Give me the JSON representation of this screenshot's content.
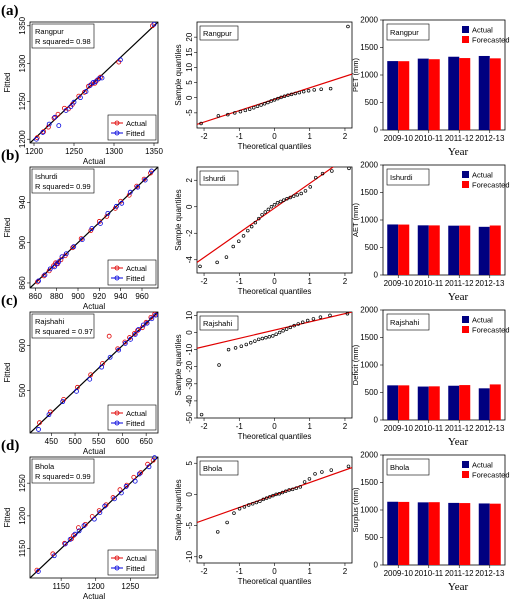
{
  "panels": [
    {
      "letter": "(a)",
      "station": "Rangpur",
      "r2": "R squared= 0.98",
      "fit": {
        "xlim": [
          1195,
          1355
        ],
        "ylim": [
          1195,
          1355
        ],
        "xticks": [
          1200,
          1250,
          1300,
          1350
        ],
        "yticks": [
          1200,
          1250,
          1300,
          1350
        ],
        "actual": [
          [
            1204,
            1202
          ],
          [
            1212,
            1210
          ],
          [
            1218,
            1216
          ],
          [
            1225,
            1228
          ],
          [
            1230,
            1233
          ],
          [
            1238,
            1241
          ],
          [
            1243,
            1240
          ],
          [
            1248,
            1246
          ],
          [
            1256,
            1257
          ],
          [
            1263,
            1262
          ],
          [
            1268,
            1270
          ],
          [
            1272,
            1273
          ],
          [
            1276,
            1274
          ],
          [
            1279,
            1278
          ],
          [
            1283,
            1282
          ],
          [
            1306,
            1302
          ],
          [
            1348,
            1350
          ]
        ],
        "fitted": [
          [
            1203,
            1200
          ],
          [
            1211,
            1209
          ],
          [
            1219,
            1220
          ],
          [
            1226,
            1229
          ],
          [
            1231,
            1218
          ],
          [
            1240,
            1238
          ],
          [
            1246,
            1243
          ],
          [
            1250,
            1249
          ],
          [
            1258,
            1255
          ],
          [
            1265,
            1263
          ],
          [
            1270,
            1271
          ],
          [
            1274,
            1275
          ],
          [
            1277,
            1276
          ],
          [
            1281,
            1280
          ],
          [
            1285,
            1281
          ],
          [
            1308,
            1305
          ],
          [
            1350,
            1352
          ]
        ]
      },
      "qq": {
        "xlim": [
          -2.2,
          2.2
        ],
        "ylim": [
          -10,
          25
        ],
        "yticks": [
          -5,
          0,
          5,
          10,
          15,
          20
        ],
        "line": [
          -2.2,
          -8.8,
          2.2,
          7.8
        ],
        "y": [
          -8.5,
          -6.0,
          -5.6,
          -5.0,
          -4.6,
          -4.2,
          -3.8,
          -3.3,
          -2.8,
          -2.4,
          -2.0,
          -1.6,
          -1.1,
          -0.7,
          -0.3,
          0.1,
          0.5,
          0.8,
          1.1,
          1.4,
          1.7,
          2.0,
          2.3,
          2.6,
          2.8,
          3.0,
          23.5
        ]
      },
      "bar": {
        "ylabel": "PET (mm)",
        "ylim": [
          0,
          2000
        ],
        "actual": [
          1253,
          1298,
          1332,
          1346
        ],
        "forecast": [
          1251,
          1287,
          1308,
          1303
        ]
      }
    },
    {
      "letter": "(b)",
      "station": "Ishurdi",
      "r2": "R squared= 0.99",
      "fit": {
        "xlim": [
          855,
          975
        ],
        "ylim": [
          855,
          975
        ],
        "xticks": [
          860,
          880,
          900,
          920,
          940,
          960
        ],
        "yticks": [
          860,
          900,
          940
        ],
        "actual": [
          [
            862,
            861
          ],
          [
            868,
            867
          ],
          [
            873,
            872
          ],
          [
            877,
            877
          ],
          [
            879,
            880
          ],
          [
            881,
            879
          ],
          [
            884,
            883
          ],
          [
            888,
            887
          ],
          [
            895,
            895
          ],
          [
            903,
            904
          ],
          [
            912,
            912
          ],
          [
            920,
            921
          ],
          [
            927,
            926
          ],
          [
            935,
            934
          ],
          [
            940,
            941
          ],
          [
            948,
            947
          ],
          [
            955,
            956
          ],
          [
            962,
            963
          ],
          [
            968,
            969
          ]
        ],
        "fitted": [
          [
            863,
            862
          ],
          [
            869,
            868
          ],
          [
            874,
            874
          ],
          [
            878,
            876
          ],
          [
            880,
            879
          ],
          [
            882,
            881
          ],
          [
            885,
            886
          ],
          [
            889,
            889
          ],
          [
            896,
            896
          ],
          [
            904,
            903
          ],
          [
            913,
            914
          ],
          [
            921,
            919
          ],
          [
            928,
            929
          ],
          [
            936,
            936
          ],
          [
            941,
            939
          ],
          [
            949,
            950
          ],
          [
            956,
            955
          ],
          [
            963,
            962
          ],
          [
            969,
            971
          ]
        ]
      },
      "qq": {
        "xlim": [
          -2.2,
          2.2
        ],
        "ylim": [
          -5,
          3
        ],
        "yticks": [
          -4,
          -2,
          0,
          2
        ],
        "line": [
          -2.2,
          -4.2,
          2.2,
          4.0
        ],
        "y": [
          -4.5,
          -4.2,
          -3.8,
          -3.0,
          -2.6,
          -2.2,
          -1.8,
          -1.5,
          -1.2,
          -0.9,
          -0.6,
          -0.4,
          -0.2,
          0.0,
          0.15,
          0.3,
          0.4,
          0.5,
          0.6,
          0.7,
          0.8,
          0.9,
          1.0,
          1.2,
          1.5,
          2.2,
          2.5,
          2.7,
          2.9
        ]
      },
      "bar": {
        "ylabel": "AET (mm)",
        "ylim": [
          0,
          2000
        ],
        "actual": [
          919,
          903,
          897,
          876
        ],
        "forecast": [
          917,
          902,
          899,
          900
        ]
      }
    },
    {
      "letter": "(c)",
      "station": "Rajshahi",
      "r2": "R squared = 0.97",
      "fit": {
        "xlim": [
          405,
          675
        ],
        "ylim": [
          405,
          675
        ],
        "xticks": [
          400,
          450,
          500,
          550,
          600,
          650
        ],
        "yticks": [
          400,
          500,
          600
        ],
        "actual": [
          [
            425,
            428
          ],
          [
            448,
            452
          ],
          [
            476,
            480
          ],
          [
            505,
            507
          ],
          [
            533,
            535
          ],
          [
            558,
            560
          ],
          [
            572,
            621
          ],
          [
            590,
            593
          ],
          [
            605,
            608
          ],
          [
            615,
            618
          ],
          [
            625,
            627
          ],
          [
            632,
            634
          ],
          [
            642,
            640
          ],
          [
            650,
            652
          ],
          [
            660,
            663
          ],
          [
            668,
            670
          ]
        ],
        "fitted": [
          [
            423,
            413
          ],
          [
            445,
            446
          ],
          [
            474,
            475
          ],
          [
            503,
            498
          ],
          [
            531,
            525
          ],
          [
            556,
            552
          ],
          [
            574,
            574
          ],
          [
            592,
            590
          ],
          [
            606,
            605
          ],
          [
            617,
            614
          ],
          [
            627,
            625
          ],
          [
            634,
            636
          ],
          [
            644,
            646
          ],
          [
            652,
            650
          ],
          [
            662,
            660
          ],
          [
            670,
            668
          ]
        ]
      },
      "qq": {
        "xlim": [
          -2.2,
          2.2
        ],
        "ylim": [
          -50,
          12
        ],
        "yticks": [
          -50,
          -40,
          -30,
          -20,
          -10,
          0,
          10
        ],
        "line": [
          -2.2,
          -9.2,
          2.2,
          12.0
        ],
        "y": [
          -48,
          -19,
          -10,
          -9,
          -8,
          -7,
          -6,
          -5,
          -4,
          -3.5,
          -3,
          -2.5,
          -2,
          -1,
          0,
          1,
          2,
          3,
          4,
          5,
          6,
          7,
          8,
          9,
          10,
          11
        ]
      },
      "bar": {
        "ylabel": "Deficit (mm)",
        "ylim": [
          0,
          2000
        ],
        "actual": [
          630,
          608,
          623,
          576
        ],
        "forecast": [
          630,
          612,
          635,
          647
        ]
      }
    },
    {
      "letter": "(d)",
      "station": "Bhola",
      "r2": "R squared= 0.99",
      "fit": {
        "xlim": [
          1105,
          1290
        ],
        "ylim": [
          1105,
          1290
        ],
        "xticks": [
          1150,
          1200,
          1250
        ],
        "yticks": [
          1150,
          1200,
          1250
        ],
        "actual": [
          [
            1115,
            1117
          ],
          [
            1138,
            1142
          ],
          [
            1155,
            1158
          ],
          [
            1165,
            1165
          ],
          [
            1168,
            1170
          ],
          [
            1175,
            1182
          ],
          [
            1185,
            1187
          ],
          [
            1195,
            1199
          ],
          [
            1205,
            1208
          ],
          [
            1215,
            1217
          ],
          [
            1225,
            1228
          ],
          [
            1235,
            1240
          ],
          [
            1245,
            1247
          ],
          [
            1255,
            1259
          ],
          [
            1265,
            1266
          ],
          [
            1275,
            1279
          ],
          [
            1283,
            1285
          ]
        ],
        "fitted": [
          [
            1117,
            1115
          ],
          [
            1140,
            1139
          ],
          [
            1156,
            1157
          ],
          [
            1163,
            1164
          ],
          [
            1170,
            1172
          ],
          [
            1176,
            1177
          ],
          [
            1183,
            1185
          ],
          [
            1198,
            1195
          ],
          [
            1206,
            1205
          ],
          [
            1213,
            1215
          ],
          [
            1227,
            1226
          ],
          [
            1237,
            1235
          ],
          [
            1244,
            1245
          ],
          [
            1257,
            1253
          ],
          [
            1263,
            1264
          ],
          [
            1277,
            1275
          ],
          [
            1285,
            1289
          ]
        ]
      },
      "qq": {
        "xlim": [
          -2.2,
          2.2
        ],
        "ylim": [
          -11,
          6
        ],
        "yticks": [
          -10,
          -5,
          0,
          5
        ],
        "line": [
          -2.2,
          -4.5,
          2.2,
          4.3
        ],
        "y": [
          -10,
          -6,
          -4.5,
          -3,
          -2.3,
          -2,
          -1.7,
          -1.5,
          -1.3,
          -1.1,
          -0.8,
          -0.6,
          -0.4,
          -0.2,
          0,
          0.1,
          0.3,
          0.5,
          0.7,
          0.8,
          1.0,
          1.2,
          2.0,
          2.5,
          3.3,
          3.6,
          3.9,
          4.5
        ]
      },
      "bar": {
        "ylabel": "Surplus (mm)",
        "ylim": [
          0,
          2000
        ],
        "actual": [
          1150,
          1139,
          1129,
          1119
        ],
        "forecast": [
          1147,
          1142,
          1126,
          1115
        ]
      }
    }
  ],
  "labels": {
    "fit_x": "Actual",
    "fit_y": "Fitted",
    "legend_actual": "Actual",
    "legend_fitted": "Fitted",
    "qq_x": "Theoretical quantiles",
    "qq_y": "Sample quantiles",
    "bar_x": "Year",
    "legend_bar_actual": "Actual",
    "legend_bar_forecast": "Forecasted",
    "years": [
      "2009-10",
      "2010-11",
      "2011-12",
      "2012-13"
    ],
    "qq_xticks": [
      -2,
      -1,
      0,
      1,
      2
    ],
    "bar_yticks": [
      0,
      500,
      1000,
      1500,
      2000
    ]
  },
  "colors": {
    "actual_pt": "#e00000",
    "fitted_pt": "#0000dd",
    "bar_actual": "#000080",
    "bar_forecast": "#ff0000",
    "qq_line": "#e00000"
  },
  "chart_data": [
    {
      "type": "scatter",
      "panel": "a",
      "title": "Rangpur",
      "annotation": "R squared= 0.98",
      "xlabel": "Actual",
      "ylabel": "Fitted",
      "xlim": [
        1195,
        1355
      ],
      "ylim": [
        1195,
        1355
      ],
      "series": [
        {
          "name": "Actual"
        },
        {
          "name": "Fitted"
        }
      ]
    },
    {
      "type": "scatter",
      "panel": "a",
      "title": "Rangpur",
      "xlabel": "Theoretical quantiles",
      "ylabel": "Sample quantiles",
      "xlim": [
        -2.2,
        2.2
      ],
      "ylim": [
        -10,
        25
      ]
    },
    {
      "type": "bar",
      "panel": "a",
      "title": "Rangpur",
      "xlabel": "Year",
      "ylabel": "PET (mm)",
      "categories": [
        "2009-10",
        "2010-11",
        "2011-12",
        "2012-13"
      ],
      "series": [
        {
          "name": "Actual",
          "values": [
            1253,
            1298,
            1332,
            1346
          ]
        },
        {
          "name": "Forecasted",
          "values": [
            1251,
            1287,
            1308,
            1303
          ]
        }
      ],
      "ylim": [
        0,
        2000
      ]
    },
    {
      "type": "scatter",
      "panel": "b",
      "title": "Ishurdi",
      "annotation": "R squared= 0.99",
      "xlabel": "Actual",
      "ylabel": "Fitted",
      "xlim": [
        855,
        975
      ],
      "ylim": [
        855,
        975
      ]
    },
    {
      "type": "scatter",
      "panel": "b",
      "title": "Ishurdi",
      "xlabel": "Theoretical quantiles",
      "ylabel": "Sample quantiles",
      "xlim": [
        -2.2,
        2.2
      ],
      "ylim": [
        -5,
        3
      ]
    },
    {
      "type": "bar",
      "panel": "b",
      "title": "Ishurdi",
      "xlabel": "Year",
      "ylabel": "AET (mm)",
      "categories": [
        "2009-10",
        "2010-11",
        "2011-12",
        "2012-13"
      ],
      "series": [
        {
          "name": "Actual",
          "values": [
            919,
            903,
            897,
            876
          ]
        },
        {
          "name": "Forecasted",
          "values": [
            917,
            902,
            899,
            900
          ]
        }
      ],
      "ylim": [
        0,
        2000
      ]
    },
    {
      "type": "scatter",
      "panel": "c",
      "title": "Rajshahi",
      "annotation": "R squared = 0.97",
      "xlabel": "Actual",
      "ylabel": "Fitted",
      "xlim": [
        405,
        675
      ],
      "ylim": [
        405,
        675
      ]
    },
    {
      "type": "scatter",
      "panel": "c",
      "title": "Rajshahi",
      "xlabel": "Theoretical quantiles",
      "ylabel": "Sample quantiles",
      "xlim": [
        -2.2,
        2.2
      ],
      "ylim": [
        -50,
        12
      ]
    },
    {
      "type": "bar",
      "panel": "c",
      "title": "Rajshahi",
      "xlabel": "Year",
      "ylabel": "Deficit (mm)",
      "categories": [
        "2009-10",
        "2010-11",
        "2011-12",
        "2012-13"
      ],
      "series": [
        {
          "name": "Actual",
          "values": [
            630,
            608,
            623,
            576
          ]
        },
        {
          "name": "Forecasted",
          "values": [
            630,
            612,
            635,
            647
          ]
        }
      ],
      "ylim": [
        0,
        2000
      ]
    },
    {
      "type": "scatter",
      "panel": "d",
      "title": "Bhola",
      "annotation": "R squared= 0.99",
      "xlabel": "Actual",
      "ylabel": "Fitted",
      "xlim": [
        1105,
        1290
      ],
      "ylim": [
        1105,
        1290
      ]
    },
    {
      "type": "scatter",
      "panel": "d",
      "title": "Bhola",
      "xlabel": "Theoretical quantiles",
      "ylabel": "Sample quantiles",
      "xlim": [
        -2.2,
        2.2
      ],
      "ylim": [
        -11,
        6
      ]
    },
    {
      "type": "bar",
      "panel": "d",
      "title": "Bhola",
      "xlabel": "Year",
      "ylabel": "Surplus (mm)",
      "categories": [
        "2009-10",
        "2010-11",
        "2011-12",
        "2012-13"
      ],
      "series": [
        {
          "name": "Actual",
          "values": [
            1150,
            1139,
            1129,
            1119
          ]
        },
        {
          "name": "Forecasted",
          "values": [
            1147,
            1142,
            1126,
            1115
          ]
        }
      ],
      "ylim": [
        0,
        2000
      ]
    }
  ]
}
